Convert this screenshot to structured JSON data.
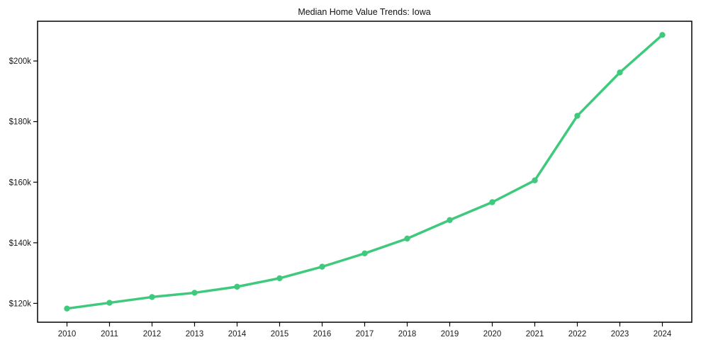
{
  "chart_data": {
    "type": "line",
    "title": "Median Home Value Trends: Iowa",
    "x": [
      2010,
      2011,
      2012,
      2013,
      2014,
      2015,
      2016,
      2017,
      2018,
      2019,
      2020,
      2021,
      2022,
      2023,
      2024
    ],
    "xtick_labels": [
      "2010",
      "2011",
      "2012",
      "2013",
      "2014",
      "2015",
      "2016",
      "2017",
      "2018",
      "2019",
      "2020",
      "2021",
      "2022",
      "2023",
      "2024"
    ],
    "series": [
      {
        "name": "Median Home Value",
        "color": "#3ec97c",
        "values": [
          118300,
          120200,
          122100,
          123500,
          125500,
          128300,
          132100,
          136500,
          141400,
          147500,
          153400,
          160600,
          181900,
          196200,
          208600
        ]
      }
    ],
    "yticks": [
      {
        "value": 120000,
        "label": "$120k"
      },
      {
        "value": 140000,
        "label": "$140k"
      },
      {
        "value": 160000,
        "label": "$160k"
      },
      {
        "value": 180000,
        "label": "$180k"
      },
      {
        "value": 200000,
        "label": "$200k"
      }
    ],
    "ylim": [
      113785,
      213115
    ],
    "xlabel": "",
    "ylabel": "",
    "grid": false,
    "legend_position": "none",
    "axis_color": "#000000",
    "tick_label_color": "#1a1a1a",
    "background_color": "#ffffff",
    "marker_style": "circle"
  }
}
